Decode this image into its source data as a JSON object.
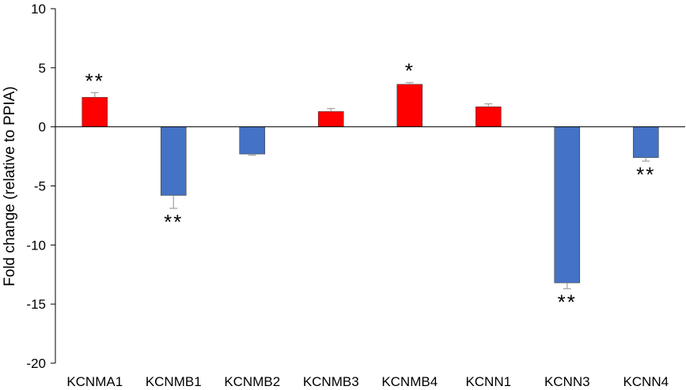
{
  "chart_data": {
    "type": "bar",
    "ylabel": "Fold change (relative to PPIA)",
    "ylim": [
      -20,
      10
    ],
    "yticks": [
      10,
      5,
      0,
      -5,
      -10,
      -15,
      -20
    ],
    "grid": false,
    "legend": "none",
    "categories": [
      "KCNMA1",
      "KCNMB1",
      "KCNMB2",
      "KCNMB3",
      "KCNMB4",
      "KCNN1",
      "KCNN3",
      "KCNN4"
    ],
    "values": [
      2.5,
      -5.8,
      -2.3,
      1.3,
      3.6,
      1.7,
      -13.2,
      -2.6
    ],
    "errors": [
      0.4,
      1.1,
      0.1,
      0.25,
      0.15,
      0.25,
      0.5,
      0.3
    ],
    "significance": [
      "**",
      "**",
      "",
      "",
      "*",
      "",
      "**",
      "**"
    ],
    "colors": {
      "positive": "#ff0000",
      "negative": "#4472c4",
      "error_bar": "#a6a6a6",
      "axis": "#000000"
    }
  }
}
